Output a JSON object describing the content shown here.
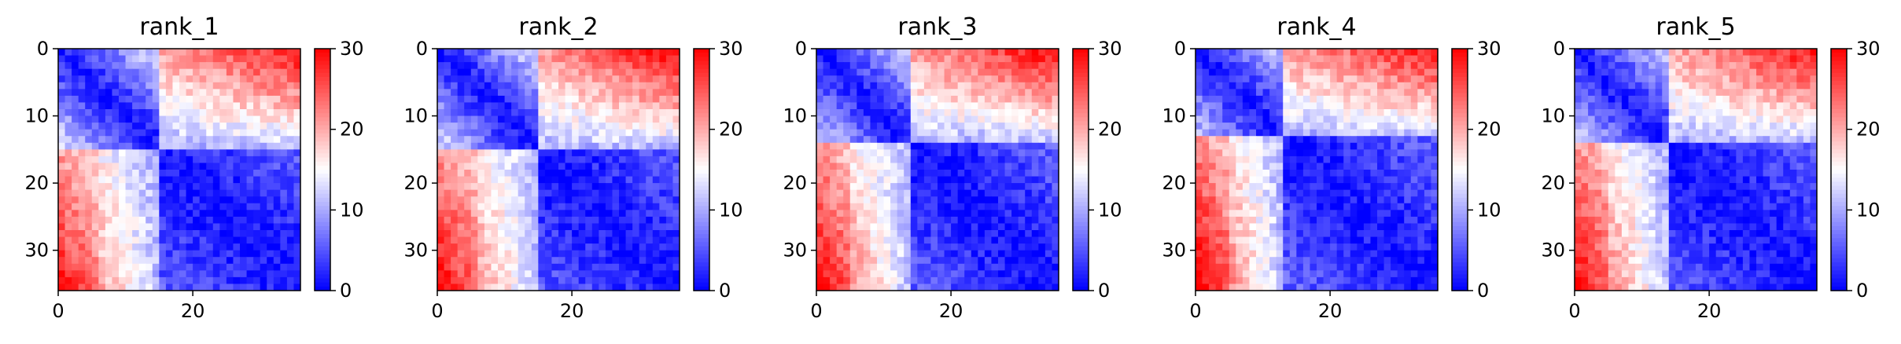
{
  "chart_data": [
    {
      "type": "heatmap",
      "title": "rank_1",
      "matrix_size": 36,
      "xticks": [
        "0",
        "20"
      ],
      "yticks": [
        "0",
        "10",
        "20",
        "30"
      ],
      "colorbar": {
        "ticks": [
          "0",
          "10",
          "20",
          "30"
        ],
        "vmin": 0,
        "vmax": 30
      },
      "colormap": "bwr",
      "structure": {
        "block_split": 15,
        "upper_corner_max": 29,
        "lower_corner_max": 25
      }
    },
    {
      "type": "heatmap",
      "title": "rank_2",
      "matrix_size": 36,
      "xticks": [
        "0",
        "20"
      ],
      "yticks": [
        "0",
        "10",
        "20",
        "30"
      ],
      "colorbar": {
        "ticks": [
          "0",
          "10",
          "20",
          "30"
        ],
        "vmin": 0,
        "vmax": 30
      },
      "colormap": "bwr",
      "structure": {
        "block_split": 15,
        "upper_corner_max": 30,
        "lower_corner_max": 26
      }
    },
    {
      "type": "heatmap",
      "title": "rank_3",
      "matrix_size": 36,
      "xticks": [
        "0",
        "20"
      ],
      "yticks": [
        "0",
        "10",
        "20",
        "30"
      ],
      "colorbar": {
        "ticks": [
          "0",
          "10",
          "20",
          "30"
        ],
        "vmin": 0,
        "vmax": 30
      },
      "colormap": "bwr",
      "structure": {
        "block_split": 14,
        "upper_corner_max": 30,
        "lower_corner_max": 26
      }
    },
    {
      "type": "heatmap",
      "title": "rank_4",
      "matrix_size": 36,
      "xticks": [
        "0",
        "20"
      ],
      "yticks": [
        "0",
        "10",
        "20",
        "30"
      ],
      "colorbar": {
        "ticks": [
          "0",
          "10",
          "20",
          "30"
        ],
        "vmin": 0,
        "vmax": 30
      },
      "colormap": "bwr",
      "structure": {
        "block_split": 13,
        "upper_corner_max": 29,
        "lower_corner_max": 27
      }
    },
    {
      "type": "heatmap",
      "title": "rank_5",
      "matrix_size": 36,
      "xticks": [
        "0",
        "20"
      ],
      "yticks": [
        "0",
        "10",
        "20",
        "30"
      ],
      "colorbar": {
        "ticks": [
          "0",
          "10",
          "20",
          "30"
        ],
        "vmin": 0,
        "vmax": 30
      },
      "colormap": "bwr",
      "structure": {
        "block_split": 14,
        "upper_corner_max": 29,
        "lower_corner_max": 26
      }
    }
  ]
}
